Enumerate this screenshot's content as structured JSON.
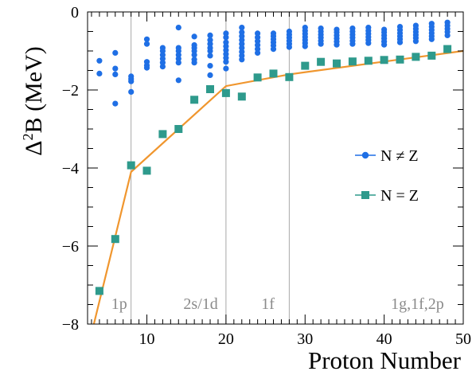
{
  "chart_data": {
    "type": "scatter",
    "xlabel": "Proton Number",
    "ylabel_main": "Δ",
    "ylabel_sup": "2",
    "ylabel_rest": "B (MeV)",
    "xlim": [
      2.5,
      50
    ],
    "ylim": [
      -8,
      0
    ],
    "xticks": [
      10,
      20,
      30,
      40,
      50
    ],
    "yticks": [
      -8,
      -6,
      -4,
      -2,
      0
    ],
    "ytick_labels": [
      "−8",
      "−6",
      "−4",
      "−2",
      "0"
    ],
    "shell_lines": [
      8,
      20,
      28
    ],
    "shell_labels": [
      {
        "text": "1p",
        "x": 6.5
      },
      {
        "text": "2s/1d",
        "x": 16.8
      },
      {
        "text": "1f",
        "x": 25.3
      },
      {
        "text": "1g,1f,2p",
        "x": 44.2
      }
    ],
    "colors": {
      "nz_series": "#1f6fe5",
      "eq_series": "#2e9a8c",
      "fit_line": "#f0962e",
      "shell_line": "#a8a8a8",
      "shell_text": "#8a8a8a"
    },
    "legend_position": "right",
    "series": [
      {
        "name": "N ≠ Z",
        "marker": "circle",
        "points": [
          [
            4,
            -1.25
          ],
          [
            4,
            -1.58
          ],
          [
            6,
            -1.05
          ],
          [
            6,
            -1.45
          ],
          [
            6,
            -1.6
          ],
          [
            6,
            -2.35
          ],
          [
            8,
            -1.65
          ],
          [
            8,
            -1.72
          ],
          [
            8,
            -1.78
          ],
          [
            8,
            -2.05
          ],
          [
            10,
            -0.7
          ],
          [
            10,
            -0.82
          ],
          [
            10,
            -1.28
          ],
          [
            10,
            -1.37
          ],
          [
            10,
            -1.43
          ],
          [
            12,
            -0.92
          ],
          [
            12,
            -1.0
          ],
          [
            12,
            -1.1
          ],
          [
            12,
            -1.2
          ],
          [
            12,
            -1.3
          ],
          [
            12,
            -1.4
          ],
          [
            14,
            -0.4
          ],
          [
            14,
            -0.92
          ],
          [
            14,
            -1.0
          ],
          [
            14,
            -1.1
          ],
          [
            14,
            -1.2
          ],
          [
            14,
            -1.3
          ],
          [
            14,
            -1.75
          ],
          [
            16,
            -0.63
          ],
          [
            16,
            -0.85
          ],
          [
            16,
            -0.92
          ],
          [
            16,
            -1.0
          ],
          [
            16,
            -1.1
          ],
          [
            16,
            -1.22
          ],
          [
            16,
            -1.3
          ],
          [
            18,
            -0.6
          ],
          [
            18,
            -0.72
          ],
          [
            18,
            -0.82
          ],
          [
            18,
            -0.92
          ],
          [
            18,
            -1.0
          ],
          [
            18,
            -1.12
          ],
          [
            18,
            -1.38
          ],
          [
            18,
            -1.62
          ],
          [
            20,
            -0.55
          ],
          [
            20,
            -0.65
          ],
          [
            20,
            -0.78
          ],
          [
            20,
            -0.88
          ],
          [
            20,
            -0.98
          ],
          [
            20,
            -1.08
          ],
          [
            20,
            -1.18
          ],
          [
            20,
            -1.28
          ],
          [
            20,
            -1.45
          ],
          [
            22,
            -0.4
          ],
          [
            22,
            -0.52
          ],
          [
            22,
            -0.62
          ],
          [
            22,
            -0.72
          ],
          [
            22,
            -0.82
          ],
          [
            22,
            -0.92
          ],
          [
            22,
            -1.02
          ],
          [
            22,
            -1.12
          ],
          [
            22,
            -1.22
          ],
          [
            24,
            -0.55
          ],
          [
            24,
            -0.65
          ],
          [
            24,
            -0.75
          ],
          [
            24,
            -0.85
          ],
          [
            24,
            -0.95
          ],
          [
            24,
            -1.05
          ],
          [
            26,
            -0.55
          ],
          [
            26,
            -0.62
          ],
          [
            26,
            -0.7
          ],
          [
            26,
            -0.78
          ],
          [
            26,
            -0.86
          ],
          [
            26,
            -0.95
          ],
          [
            28,
            -0.5
          ],
          [
            28,
            -0.58
          ],
          [
            28,
            -0.66
          ],
          [
            28,
            -0.74
          ],
          [
            28,
            -0.82
          ],
          [
            28,
            -0.9
          ],
          [
            30,
            -0.4
          ],
          [
            30,
            -0.48
          ],
          [
            30,
            -0.56
          ],
          [
            30,
            -0.64
          ],
          [
            30,
            -0.72
          ],
          [
            30,
            -0.8
          ],
          [
            30,
            -0.88
          ],
          [
            32,
            -0.42
          ],
          [
            32,
            -0.5
          ],
          [
            32,
            -0.58
          ],
          [
            32,
            -0.66
          ],
          [
            32,
            -0.74
          ],
          [
            32,
            -0.82
          ],
          [
            34,
            -0.45
          ],
          [
            34,
            -0.52
          ],
          [
            34,
            -0.6
          ],
          [
            34,
            -0.68
          ],
          [
            34,
            -0.76
          ],
          [
            34,
            -0.84
          ],
          [
            36,
            -0.42
          ],
          [
            36,
            -0.5
          ],
          [
            36,
            -0.58
          ],
          [
            36,
            -0.66
          ],
          [
            36,
            -0.74
          ],
          [
            36,
            -0.82
          ],
          [
            38,
            -0.4
          ],
          [
            38,
            -0.48
          ],
          [
            38,
            -0.56
          ],
          [
            38,
            -0.64
          ],
          [
            38,
            -0.72
          ],
          [
            38,
            -0.8
          ],
          [
            40,
            -0.45
          ],
          [
            40,
            -0.52
          ],
          [
            40,
            -0.6
          ],
          [
            40,
            -0.68
          ],
          [
            40,
            -0.76
          ],
          [
            40,
            -0.84
          ],
          [
            42,
            -0.38
          ],
          [
            42,
            -0.46
          ],
          [
            42,
            -0.54
          ],
          [
            42,
            -0.62
          ],
          [
            42,
            -0.7
          ],
          [
            42,
            -0.78
          ],
          [
            44,
            -0.35
          ],
          [
            44,
            -0.43
          ],
          [
            44,
            -0.51
          ],
          [
            44,
            -0.59
          ],
          [
            44,
            -0.67
          ],
          [
            44,
            -0.75
          ],
          [
            46,
            -0.3
          ],
          [
            46,
            -0.38
          ],
          [
            46,
            -0.46
          ],
          [
            46,
            -0.54
          ],
          [
            46,
            -0.62
          ],
          [
            46,
            -0.7
          ],
          [
            48,
            -0.27
          ],
          [
            48,
            -0.35
          ],
          [
            48,
            -0.43
          ],
          [
            48,
            -0.51
          ],
          [
            48,
            -0.6
          ]
        ]
      },
      {
        "name": "N = Z",
        "marker": "square",
        "points": [
          [
            4,
            -7.15
          ],
          [
            6,
            -5.82
          ],
          [
            8,
            -3.93
          ],
          [
            10,
            -4.07
          ],
          [
            12,
            -3.13
          ],
          [
            14,
            -3.0
          ],
          [
            16,
            -2.25
          ],
          [
            18,
            -1.98
          ],
          [
            20,
            -2.08
          ],
          [
            22,
            -2.17
          ],
          [
            24,
            -1.68
          ],
          [
            26,
            -1.58
          ],
          [
            28,
            -1.67
          ],
          [
            30,
            -1.38
          ],
          [
            32,
            -1.28
          ],
          [
            34,
            -1.32
          ],
          [
            36,
            -1.27
          ],
          [
            38,
            -1.25
          ],
          [
            40,
            -1.23
          ],
          [
            42,
            -1.22
          ],
          [
            44,
            -1.15
          ],
          [
            46,
            -1.12
          ],
          [
            48,
            -0.95
          ]
        ]
      }
    ],
    "fit_line": [
      [
        3.3,
        -8
      ],
      [
        8,
        -4.1
      ],
      [
        20,
        -1.9
      ],
      [
        28,
        -1.6
      ],
      [
        50,
        -1.0
      ]
    ]
  }
}
